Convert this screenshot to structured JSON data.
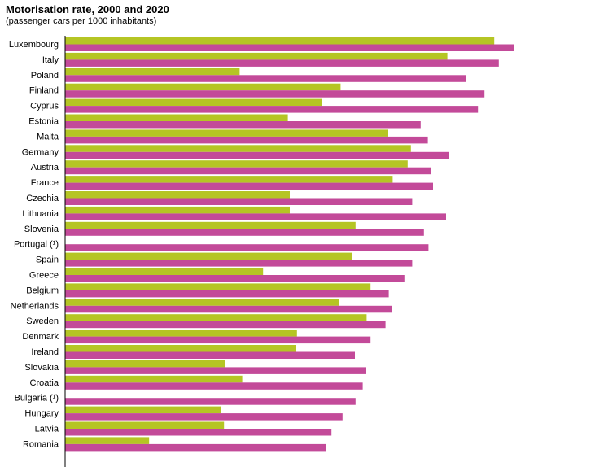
{
  "title": "Motorisation  rate, 2000 and 2020",
  "subtitle": "(passenger cars per 1000 inhabitants)",
  "colors": {
    "series_2000": "#b5c524",
    "series_2020": "#c34a99",
    "axis": "#000000"
  },
  "chart_data": {
    "type": "bar",
    "orientation": "horizontal",
    "title": "Motorisation  rate, 2000 and 2020",
    "subtitle": "(passenger cars per 1000 inhabitants)",
    "xlabel": "",
    "ylabel": "",
    "grid": false,
    "legend": "none",
    "xlim": [
      0,
      700
    ],
    "categories": [
      "Luxembourg",
      "Italy",
      "Poland",
      "Finland",
      "Cyprus",
      "Estonia",
      "Malta",
      "Germany",
      "Austria",
      "France",
      "Czechia",
      "Lithuania",
      "Slovenia",
      "Portugal (¹)",
      "Spain",
      "Greece",
      "Belgium",
      "Netherlands",
      "Sweden",
      "Denmark",
      "Ireland",
      "Slovakia",
      "Croatia",
      "Bulgaria (¹)",
      "Hungary",
      "Latvia",
      "Romania"
    ],
    "series": [
      {
        "key": "2000",
        "color": "#b5c524",
        "values": [
          659,
          587,
          268,
          423,
          395,
          342,
          496,
          531,
          526,
          503,
          345,
          345,
          446,
          null,
          441,
          304,
          469,
          420,
          463,
          356,
          354,
          245,
          272,
          null,
          240,
          244,
          129
        ]
      },
      {
        "key": "2020",
        "color": "#c34a99",
        "values": [
          690,
          666,
          615,
          644,
          634,
          546,
          557,
          590,
          562,
          565,
          533,
          585,
          551,
          558,
          533,
          521,
          497,
          502,
          492,
          469,
          445,
          462,
          457,
          446,
          426,
          409,
          400
        ]
      }
    ]
  }
}
